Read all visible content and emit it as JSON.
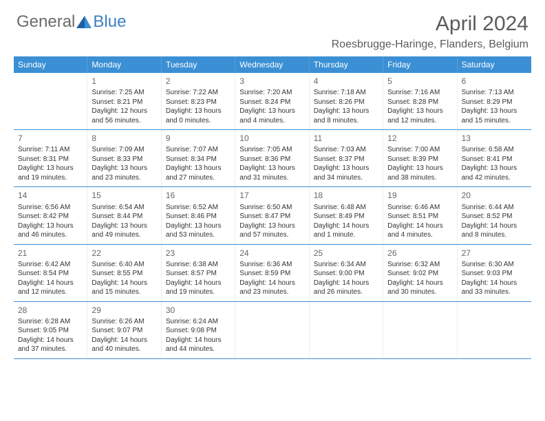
{
  "logo": {
    "text1": "General",
    "text2": "Blue"
  },
  "title": "April 2024",
  "location": "Roesbrugge-Haringe, Flanders, Belgium",
  "colors": {
    "header_bg": "#3b8fd4",
    "border": "#3b8fd4",
    "text": "#333333",
    "muted": "#6b6b6b"
  },
  "dayNames": [
    "Sunday",
    "Monday",
    "Tuesday",
    "Wednesday",
    "Thursday",
    "Friday",
    "Saturday"
  ],
  "weeks": [
    [
      null,
      {
        "d": "1",
        "sr": "Sunrise: 7:25 AM",
        "ss": "Sunset: 8:21 PM",
        "dl": "Daylight: 12 hours and 56 minutes."
      },
      {
        "d": "2",
        "sr": "Sunrise: 7:22 AM",
        "ss": "Sunset: 8:23 PM",
        "dl": "Daylight: 13 hours and 0 minutes."
      },
      {
        "d": "3",
        "sr": "Sunrise: 7:20 AM",
        "ss": "Sunset: 8:24 PM",
        "dl": "Daylight: 13 hours and 4 minutes."
      },
      {
        "d": "4",
        "sr": "Sunrise: 7:18 AM",
        "ss": "Sunset: 8:26 PM",
        "dl": "Daylight: 13 hours and 8 minutes."
      },
      {
        "d": "5",
        "sr": "Sunrise: 7:16 AM",
        "ss": "Sunset: 8:28 PM",
        "dl": "Daylight: 13 hours and 12 minutes."
      },
      {
        "d": "6",
        "sr": "Sunrise: 7:13 AM",
        "ss": "Sunset: 8:29 PM",
        "dl": "Daylight: 13 hours and 15 minutes."
      }
    ],
    [
      {
        "d": "7",
        "sr": "Sunrise: 7:11 AM",
        "ss": "Sunset: 8:31 PM",
        "dl": "Daylight: 13 hours and 19 minutes."
      },
      {
        "d": "8",
        "sr": "Sunrise: 7:09 AM",
        "ss": "Sunset: 8:33 PM",
        "dl": "Daylight: 13 hours and 23 minutes."
      },
      {
        "d": "9",
        "sr": "Sunrise: 7:07 AM",
        "ss": "Sunset: 8:34 PM",
        "dl": "Daylight: 13 hours and 27 minutes."
      },
      {
        "d": "10",
        "sr": "Sunrise: 7:05 AM",
        "ss": "Sunset: 8:36 PM",
        "dl": "Daylight: 13 hours and 31 minutes."
      },
      {
        "d": "11",
        "sr": "Sunrise: 7:03 AM",
        "ss": "Sunset: 8:37 PM",
        "dl": "Daylight: 13 hours and 34 minutes."
      },
      {
        "d": "12",
        "sr": "Sunrise: 7:00 AM",
        "ss": "Sunset: 8:39 PM",
        "dl": "Daylight: 13 hours and 38 minutes."
      },
      {
        "d": "13",
        "sr": "Sunrise: 6:58 AM",
        "ss": "Sunset: 8:41 PM",
        "dl": "Daylight: 13 hours and 42 minutes."
      }
    ],
    [
      {
        "d": "14",
        "sr": "Sunrise: 6:56 AM",
        "ss": "Sunset: 8:42 PM",
        "dl": "Daylight: 13 hours and 46 minutes."
      },
      {
        "d": "15",
        "sr": "Sunrise: 6:54 AM",
        "ss": "Sunset: 8:44 PM",
        "dl": "Daylight: 13 hours and 49 minutes."
      },
      {
        "d": "16",
        "sr": "Sunrise: 6:52 AM",
        "ss": "Sunset: 8:46 PM",
        "dl": "Daylight: 13 hours and 53 minutes."
      },
      {
        "d": "17",
        "sr": "Sunrise: 6:50 AM",
        "ss": "Sunset: 8:47 PM",
        "dl": "Daylight: 13 hours and 57 minutes."
      },
      {
        "d": "18",
        "sr": "Sunrise: 6:48 AM",
        "ss": "Sunset: 8:49 PM",
        "dl": "Daylight: 14 hours and 1 minute."
      },
      {
        "d": "19",
        "sr": "Sunrise: 6:46 AM",
        "ss": "Sunset: 8:51 PM",
        "dl": "Daylight: 14 hours and 4 minutes."
      },
      {
        "d": "20",
        "sr": "Sunrise: 6:44 AM",
        "ss": "Sunset: 8:52 PM",
        "dl": "Daylight: 14 hours and 8 minutes."
      }
    ],
    [
      {
        "d": "21",
        "sr": "Sunrise: 6:42 AM",
        "ss": "Sunset: 8:54 PM",
        "dl": "Daylight: 14 hours and 12 minutes."
      },
      {
        "d": "22",
        "sr": "Sunrise: 6:40 AM",
        "ss": "Sunset: 8:55 PM",
        "dl": "Daylight: 14 hours and 15 minutes."
      },
      {
        "d": "23",
        "sr": "Sunrise: 6:38 AM",
        "ss": "Sunset: 8:57 PM",
        "dl": "Daylight: 14 hours and 19 minutes."
      },
      {
        "d": "24",
        "sr": "Sunrise: 6:36 AM",
        "ss": "Sunset: 8:59 PM",
        "dl": "Daylight: 14 hours and 23 minutes."
      },
      {
        "d": "25",
        "sr": "Sunrise: 6:34 AM",
        "ss": "Sunset: 9:00 PM",
        "dl": "Daylight: 14 hours and 26 minutes."
      },
      {
        "d": "26",
        "sr": "Sunrise: 6:32 AM",
        "ss": "Sunset: 9:02 PM",
        "dl": "Daylight: 14 hours and 30 minutes."
      },
      {
        "d": "27",
        "sr": "Sunrise: 6:30 AM",
        "ss": "Sunset: 9:03 PM",
        "dl": "Daylight: 14 hours and 33 minutes."
      }
    ],
    [
      {
        "d": "28",
        "sr": "Sunrise: 6:28 AM",
        "ss": "Sunset: 9:05 PM",
        "dl": "Daylight: 14 hours and 37 minutes."
      },
      {
        "d": "29",
        "sr": "Sunrise: 6:26 AM",
        "ss": "Sunset: 9:07 PM",
        "dl": "Daylight: 14 hours and 40 minutes."
      },
      {
        "d": "30",
        "sr": "Sunrise: 6:24 AM",
        "ss": "Sunset: 9:08 PM",
        "dl": "Daylight: 14 hours and 44 minutes."
      },
      null,
      null,
      null,
      null
    ]
  ]
}
